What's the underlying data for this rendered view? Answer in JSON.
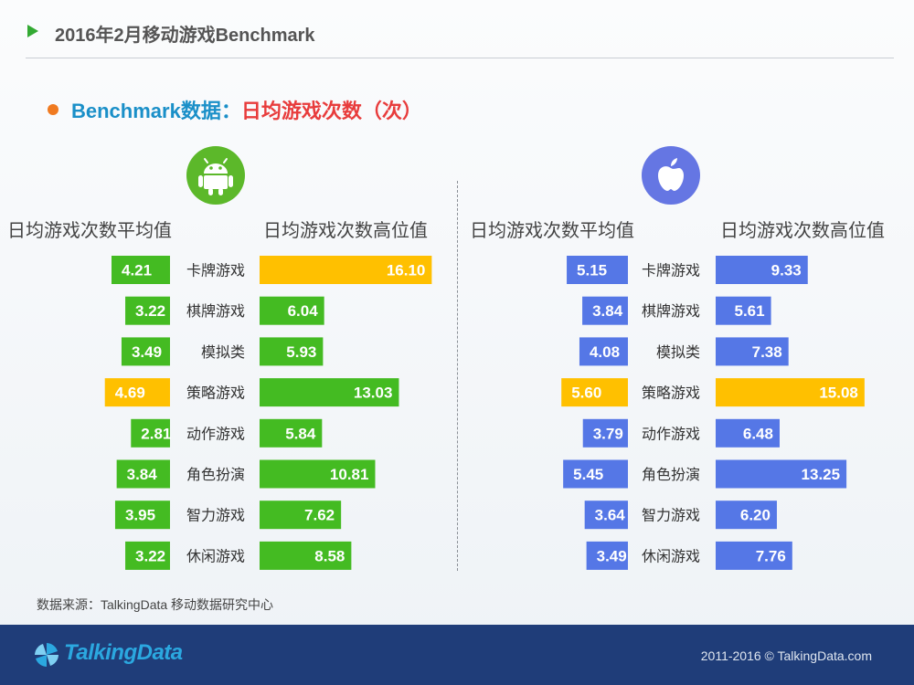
{
  "header": {
    "title": "2016年2月移动游戏Benchmark"
  },
  "section": {
    "lead": "Benchmark数据：",
    "highlight": "日均游戏次数（次）"
  },
  "icons": {
    "left": "android-logo-icon",
    "right": "apple-logo-icon"
  },
  "colors": {
    "android": "#44bb22",
    "ios": "#5577e6",
    "highlight": "#ffc000",
    "android_icon_bg": "#5cb82a",
    "ios_icon_bg": "#6576e3"
  },
  "column_headers": {
    "android_avg": "日均游戏次数平均值",
    "android_high": "日均游戏次数高位值",
    "ios_avg": "日均游戏次数平均值",
    "ios_high": "日均游戏次数高位值"
  },
  "chart_data": [
    {
      "type": "bar",
      "platform": "android",
      "categories": [
        "卡牌游戏",
        "棋牌游戏",
        "模拟类",
        "策略游戏",
        "动作游戏",
        "角色扮演",
        "智力游戏",
        "休闲游戏"
      ],
      "series": [
        {
          "name": "日均游戏次数平均值",
          "values": [
            4.21,
            3.22,
            3.49,
            4.69,
            2.81,
            3.84,
            3.95,
            3.22
          ]
        },
        {
          "name": "日均游戏次数高位值",
          "values": [
            16.1,
            6.04,
            5.93,
            13.03,
            5.84,
            10.81,
            7.62,
            8.58
          ]
        }
      ],
      "highlighted": {
        "日均游戏次数平均值": [
          "策略游戏"
        ],
        "日均游戏次数高位值": [
          "卡牌游戏"
        ]
      }
    },
    {
      "type": "bar",
      "platform": "ios",
      "categories": [
        "卡牌游戏",
        "棋牌游戏",
        "模拟类",
        "策略游戏",
        "动作游戏",
        "角色扮演",
        "智力游戏",
        "休闲游戏"
      ],
      "series": [
        {
          "name": "日均游戏次数平均值",
          "values": [
            5.15,
            3.84,
            4.08,
            5.6,
            3.79,
            5.45,
            3.64,
            3.49
          ]
        },
        {
          "name": "日均游戏次数高位值",
          "values": [
            9.33,
            5.61,
            7.38,
            15.08,
            6.48,
            13.25,
            6.2,
            7.76
          ]
        }
      ],
      "highlighted": {
        "日均游戏次数平均值": [
          "策略游戏"
        ],
        "日均游戏次数高位值": [
          "策略游戏"
        ]
      }
    }
  ],
  "source": "数据来源：TalkingData 移动数据研究中心",
  "footer": {
    "brand": "TalkingData",
    "copyright": "2011-2016 © TalkingData.com"
  }
}
